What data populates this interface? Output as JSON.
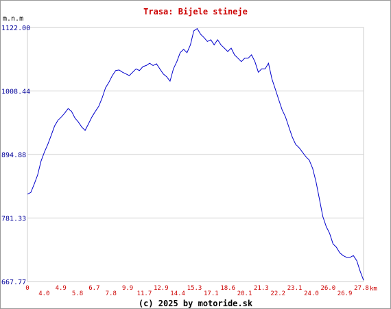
{
  "chart_data": {
    "type": "line",
    "title": "Trasa: Bijele stineje",
    "y_label": "m.n.m",
    "x_unit": "km",
    "footer": "(c) 2025 by motoride.sk",
    "color": "#0000cc",
    "grid": true,
    "ylim": [
      667.77,
      1122.0
    ],
    "yticks": [
      {
        "value": 1122.0,
        "label": "1122.00"
      },
      {
        "value": 1008.44,
        "label": "1008.44"
      },
      {
        "value": 894.88,
        "label": "894.88"
      },
      {
        "value": 781.33,
        "label": "781.33"
      },
      {
        "value": 667.77,
        "label": "667.77"
      }
    ],
    "x_labels": [
      "0",
      "4.0",
      "4.9",
      "5.8",
      "6.7",
      "7.8",
      "9.9",
      "11.7",
      "12.9",
      "14.4",
      "15.3",
      "17.1",
      "18.6",
      "20.1",
      "21.3",
      "22.2",
      "23.1",
      "24.0",
      "26.0",
      "26.9",
      "27.8"
    ],
    "values": [
      824,
      827,
      842,
      858,
      883,
      899,
      913,
      929,
      946,
      956,
      962,
      969,
      977,
      972,
      960,
      953,
      944,
      938,
      950,
      962,
      972,
      981,
      996,
      1014,
      1024,
      1036,
      1045,
      1046,
      1042,
      1039,
      1036,
      1042,
      1048,
      1045,
      1052,
      1054,
      1058,
      1054,
      1057,
      1048,
      1039,
      1034,
      1026,
      1048,
      1061,
      1077,
      1083,
      1077,
      1091,
      1116,
      1120,
      1110,
      1104,
      1097,
      1100,
      1091,
      1100,
      1091,
      1085,
      1079,
      1085,
      1073,
      1067,
      1061,
      1067,
      1067,
      1073,
      1061,
      1042,
      1048,
      1048,
      1058,
      1030,
      1012,
      993,
      975,
      962,
      944,
      926,
      913,
      907,
      899,
      891,
      885,
      870,
      846,
      815,
      784,
      766,
      754,
      735,
      729,
      719,
      714,
      711,
      711,
      714,
      705,
      686,
      670
    ]
  }
}
